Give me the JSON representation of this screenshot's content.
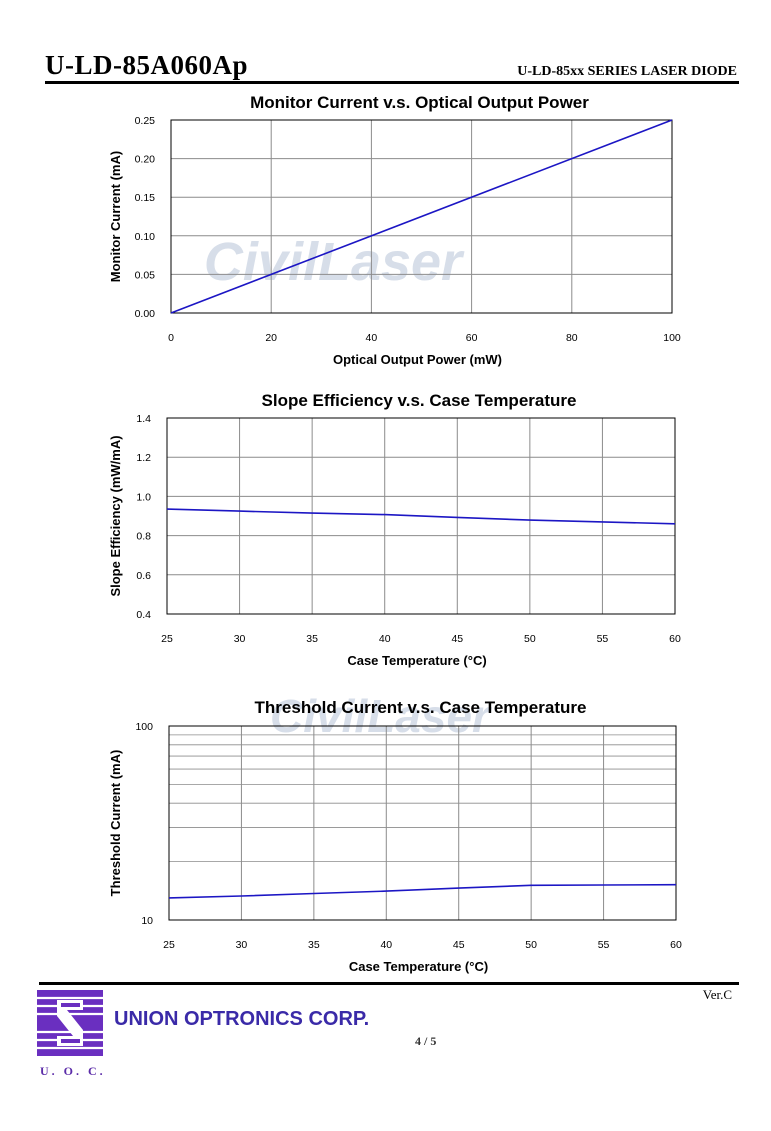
{
  "header": {
    "model": "U-LD-85A060Ap",
    "series": "U-LD-85xx SERIES LASER DIODE"
  },
  "watermark": "CivilLaser",
  "footer": {
    "company": "UNION OPTRONICS CORP.",
    "logo_caption": "U. O. C.",
    "version": "Ver.C",
    "page": "4 / 5"
  },
  "colors": {
    "series": "#1c16c4",
    "grid": "#8c8c8c",
    "logo": "#6a2fc0",
    "company": "#3a2aa8"
  },
  "chart_data": [
    {
      "type": "line",
      "title": "Monitor Current v.s. Optical Output Power",
      "xlabel": "Optical Output Power (mW)",
      "ylabel": "Monitor Current (mA)",
      "xlim": [
        0,
        100
      ],
      "ylim": [
        0,
        0.25
      ],
      "xticks": [
        0,
        20,
        40,
        60,
        80,
        100
      ],
      "yticks": [
        0,
        0.05,
        0.1,
        0.15,
        0.2,
        0.25
      ],
      "xtick_labels": [
        "0",
        "20",
        "40",
        "60",
        "80",
        "100"
      ],
      "ytick_labels": [
        "0.00",
        "0.05",
        "0.10",
        "0.15",
        "0.20",
        "0.25"
      ],
      "grid": true,
      "series": [
        {
          "x": [
            0,
            100
          ],
          "y": [
            0,
            0.25
          ]
        }
      ]
    },
    {
      "type": "line",
      "title": "Slope Efficiency v.s. Case Temperature",
      "xlabel": "Case Temperature (°C)",
      "ylabel": "Slope Efficiency (mW/mA)",
      "xlim": [
        25,
        60
      ],
      "ylim": [
        0.4,
        1.4
      ],
      "xticks": [
        25,
        30,
        35,
        40,
        45,
        50,
        55,
        60
      ],
      "yticks": [
        0.4,
        0.6,
        0.8,
        1.0,
        1.2,
        1.4
      ],
      "xtick_labels": [
        "25",
        "30",
        "35",
        "40",
        "45",
        "50",
        "55",
        "60"
      ],
      "ytick_labels": [
        "0.4",
        "0.6",
        "0.8",
        "1.0",
        "1.2",
        "1.4"
      ],
      "grid": true,
      "series": [
        {
          "x": [
            25,
            30,
            35,
            40,
            45,
            50,
            55,
            60
          ],
          "y": [
            0.935,
            0.925,
            0.915,
            0.907,
            0.893,
            0.879,
            0.87,
            0.86
          ]
        }
      ]
    },
    {
      "type": "line",
      "title": "Threshold Current v.s. Case Temperature",
      "xlabel": "Case Temperature (°C)",
      "ylabel": "Threshold Current (mA)",
      "xlim": [
        25,
        60
      ],
      "ylim": [
        10,
        100
      ],
      "yscale": "log",
      "xticks": [
        25,
        30,
        35,
        40,
        45,
        50,
        55,
        60
      ],
      "yticks": [
        10,
        100
      ],
      "xtick_labels": [
        "25",
        "30",
        "35",
        "40",
        "45",
        "50",
        "55",
        "60"
      ],
      "ytick_labels": [
        "10",
        "100"
      ],
      "grid": true,
      "series": [
        {
          "x": [
            25,
            30,
            35,
            40,
            45,
            50,
            55,
            60
          ],
          "y": [
            13.0,
            13.3,
            13.7,
            14.1,
            14.6,
            15.1,
            15.15,
            15.2
          ]
        }
      ]
    }
  ]
}
